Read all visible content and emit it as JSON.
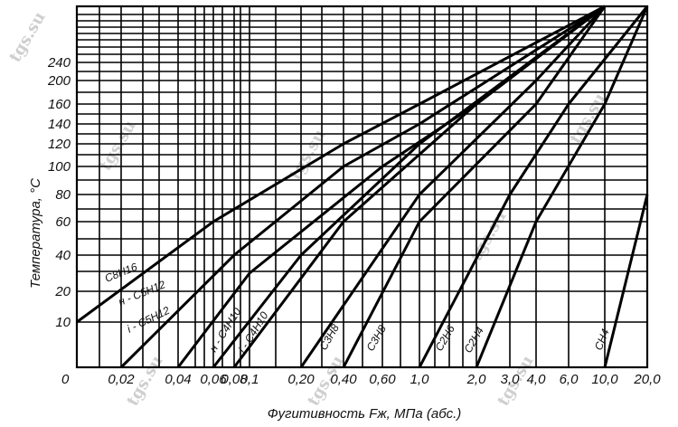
{
  "chart_data": {
    "type": "line",
    "title": "",
    "xlabel": "Фугитивность Fж, МПа (абс.)",
    "ylabel": "Температура, °C",
    "x_ticks": [
      "0",
      "0,02",
      "0,04",
      "0,06",
      "0,08",
      "0,1",
      "0,20",
      "0,40",
      "0,60",
      "1,0",
      "2,0",
      "3,0",
      "4,0",
      "6,0",
      "10,0",
      "20,0"
    ],
    "y_ticks": [
      "10",
      "20",
      "40",
      "60",
      "80",
      "100",
      "120",
      "140",
      "160",
      "200",
      "240"
    ],
    "grid": true,
    "series": [
      {
        "name": "C8H16",
        "label": "C8H16",
        "points": [
          {
            "x": "0",
            "y": 10
          },
          {
            "x": "0,06",
            "y": 60
          },
          {
            "x": "0,40",
            "y": 120
          },
          {
            "x": "1,0",
            "y": 160
          },
          {
            "x": "10,0",
            "y": 280
          }
        ]
      },
      {
        "name": "н-C5H12",
        "label": "н - C5H12",
        "points": [
          {
            "x": "0,02",
            "y": 0
          },
          {
            "x": "0,08",
            "y": 40
          },
          {
            "x": "0,40",
            "y": 100
          },
          {
            "x": "1,0",
            "y": 140
          },
          {
            "x": "10,0",
            "y": 280
          }
        ]
      },
      {
        "name": "i-C5H12",
        "label": "i - C5H12",
        "points": [
          {
            "x": "0,04",
            "y": 0
          },
          {
            "x": "0,1",
            "y": 30
          },
          {
            "x": "0,60",
            "y": 100
          },
          {
            "x": "2,0",
            "y": 160
          },
          {
            "x": "10,0",
            "y": 280
          }
        ]
      },
      {
        "name": "н-C4H10",
        "label": "н - C4H10",
        "points": [
          {
            "x": "0,06",
            "y": 0
          },
          {
            "x": "0,20",
            "y": 40
          },
          {
            "x": "1,0",
            "y": 120
          },
          {
            "x": "10,0",
            "y": 280
          }
        ]
      },
      {
        "name": "i-C4H10",
        "label": "i - C4H10",
        "points": [
          {
            "x": "0,08",
            "y": 0
          },
          {
            "x": "0,40",
            "y": 60
          },
          {
            "x": "2,0",
            "y": 160
          },
          {
            "x": "10,0",
            "y": 280
          }
        ]
      },
      {
        "name": "C3H8 (upper)",
        "label": "C3H8",
        "points": [
          {
            "x": "0,20",
            "y": 0
          },
          {
            "x": "1,0",
            "y": 80
          },
          {
            "x": "4,0",
            "y": 200
          },
          {
            "x": "10,0",
            "y": 280
          }
        ]
      },
      {
        "name": "C3H8 (lower)",
        "label": "C3H8",
        "points": [
          {
            "x": "0,40",
            "y": 0
          },
          {
            "x": "1,0",
            "y": 60
          },
          {
            "x": "4,0",
            "y": 160
          },
          {
            "x": "10,0",
            "y": 280
          }
        ]
      },
      {
        "name": "C2H6",
        "label": "C2H6",
        "points": [
          {
            "x": "1,0",
            "y": 0
          },
          {
            "x": "3,0",
            "y": 80
          },
          {
            "x": "6,0",
            "y": 160
          },
          {
            "x": "20,0",
            "y": 280
          }
        ]
      },
      {
        "name": "C2H4",
        "label": "C2H4",
        "points": [
          {
            "x": "2,0",
            "y": 0
          },
          {
            "x": "4,0",
            "y": 60
          },
          {
            "x": "10,0",
            "y": 160
          },
          {
            "x": "20,0",
            "y": 280
          }
        ]
      },
      {
        "name": "CH4",
        "label": "CH4",
        "points": [
          {
            "x": "10,0",
            "y": 0
          },
          {
            "x": "20,0",
            "y": 80
          }
        ]
      }
    ]
  },
  "watermark": "tgs.su"
}
